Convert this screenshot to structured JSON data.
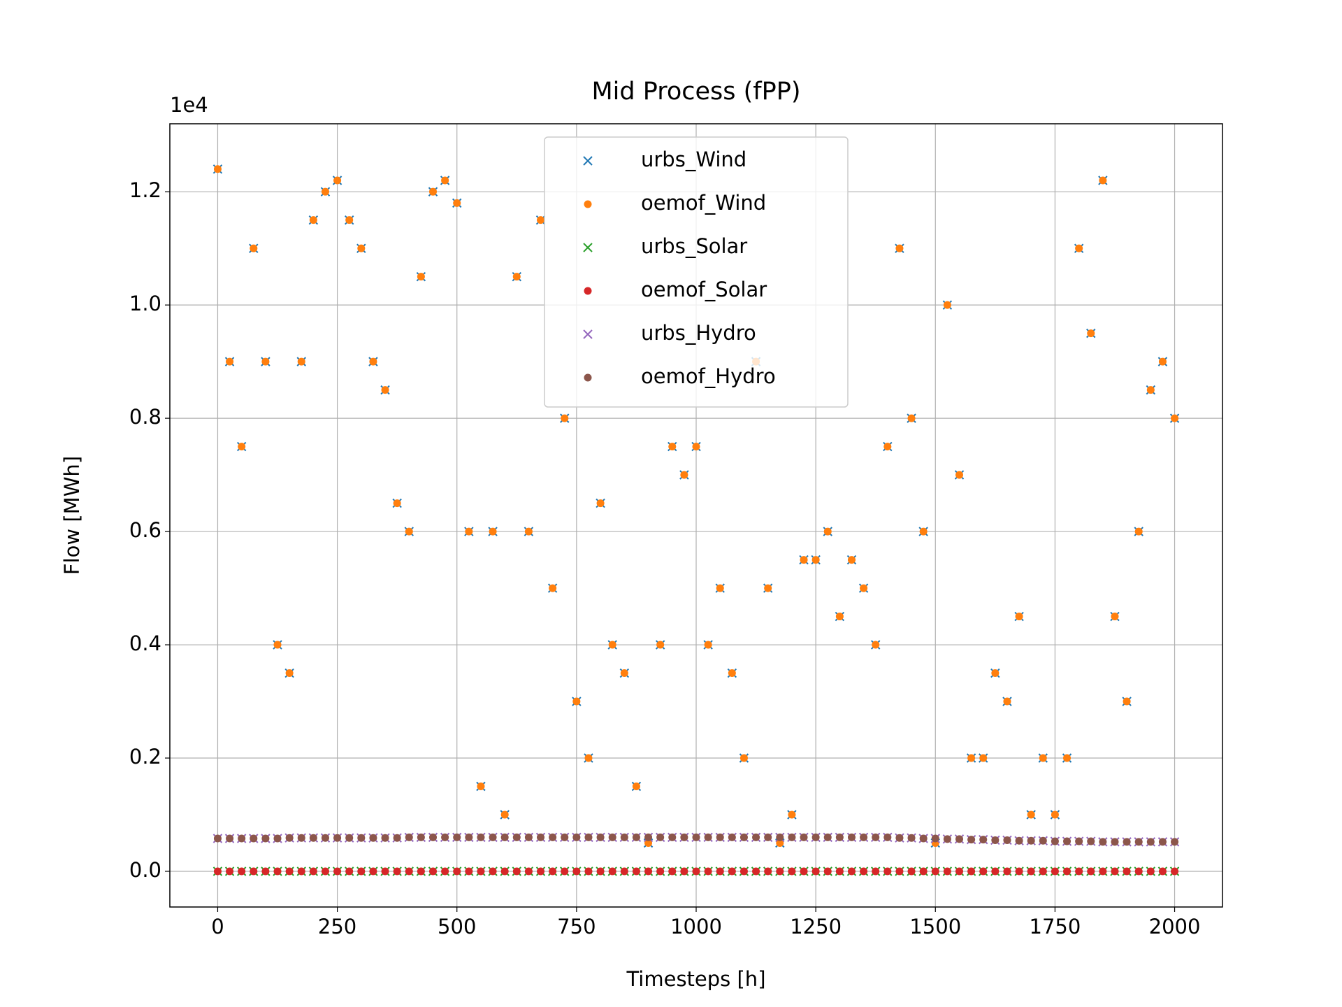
{
  "chart_data": {
    "type": "scatter",
    "title": "Mid Process (fPP)",
    "xlabel": "Timesteps [h]",
    "ylabel": "Flow [MWh]",
    "y_offset_text": "1e4",
    "x": [
      0,
      25,
      50,
      75,
      100,
      125,
      150,
      175,
      200,
      225,
      250,
      275,
      300,
      325,
      350,
      375,
      400,
      425,
      450,
      475,
      500,
      525,
      550,
      575,
      600,
      625,
      650,
      675,
      700,
      725,
      750,
      775,
      800,
      825,
      850,
      875,
      900,
      925,
      950,
      975,
      1000,
      1025,
      1050,
      1075,
      1100,
      1125,
      1150,
      1175,
      1200,
      1225,
      1250,
      1275,
      1300,
      1325,
      1350,
      1375,
      1400,
      1425,
      1450,
      1475,
      1500,
      1525,
      1550,
      1575,
      1600,
      1625,
      1650,
      1675,
      1700,
      1725,
      1750,
      1775,
      1800,
      1825,
      1850,
      1875,
      1900,
      1925,
      1950,
      1975,
      2000
    ],
    "series": [
      {
        "name": "urbs_Wind",
        "color": "#1f77b4",
        "marker": "x",
        "values": [
          1.24,
          0.9,
          0.75,
          1.1,
          0.9,
          0.4,
          0.35,
          0.9,
          1.15,
          1.2,
          1.22,
          1.15,
          1.1,
          0.9,
          0.85,
          0.65,
          0.6,
          1.05,
          1.2,
          1.22,
          1.18,
          0.6,
          0.15,
          0.6,
          0.1,
          1.05,
          0.6,
          1.15,
          0.5,
          0.8,
          0.3,
          0.2,
          0.65,
          0.4,
          0.35,
          0.15,
          0.05,
          0.4,
          0.75,
          0.7,
          0.75,
          0.4,
          0.5,
          0.35,
          0.2,
          0.9,
          0.5,
          0.05,
          0.1,
          0.55,
          0.55,
          0.6,
          0.45,
          0.55,
          0.5,
          0.4,
          0.75,
          1.1,
          0.8,
          0.6,
          0.05,
          1.0,
          0.7,
          0.2,
          0.2,
          0.35,
          0.3,
          0.45,
          0.1,
          0.2,
          0.1,
          0.2,
          1.1,
          0.95,
          1.22,
          0.45,
          0.3,
          0.6,
          0.85,
          0.9,
          0.8
        ]
      },
      {
        "name": "oemof_Wind",
        "color": "#ff7f0e",
        "marker": "o",
        "values": [
          1.24,
          0.9,
          0.75,
          1.1,
          0.9,
          0.4,
          0.35,
          0.9,
          1.15,
          1.2,
          1.22,
          1.15,
          1.1,
          0.9,
          0.85,
          0.65,
          0.6,
          1.05,
          1.2,
          1.22,
          1.18,
          0.6,
          0.15,
          0.6,
          0.1,
          1.05,
          0.6,
          1.15,
          0.5,
          0.8,
          0.3,
          0.2,
          0.65,
          0.4,
          0.35,
          0.15,
          0.05,
          0.4,
          0.75,
          0.7,
          0.75,
          0.4,
          0.5,
          0.35,
          0.2,
          0.9,
          0.5,
          0.05,
          0.1,
          0.55,
          0.55,
          0.6,
          0.45,
          0.55,
          0.5,
          0.4,
          0.75,
          1.1,
          0.8,
          0.6,
          0.05,
          1.0,
          0.7,
          0.2,
          0.2,
          0.35,
          0.3,
          0.45,
          0.1,
          0.2,
          0.1,
          0.2,
          1.1,
          0.95,
          1.22,
          0.45,
          0.3,
          0.6,
          0.85,
          0.9,
          0.8
        ]
      },
      {
        "name": "urbs_Solar",
        "color": "#2ca02c",
        "marker": "x",
        "values": [
          0,
          0,
          0,
          0,
          0,
          0,
          0,
          0,
          0,
          0,
          0,
          0,
          0,
          0,
          0,
          0,
          0,
          0,
          0,
          0,
          0,
          0,
          0,
          0,
          0,
          0,
          0,
          0,
          0,
          0,
          0,
          0,
          0,
          0,
          0,
          0,
          0,
          0,
          0,
          0,
          0,
          0,
          0,
          0,
          0,
          0,
          0,
          0,
          0,
          0,
          0,
          0,
          0,
          0,
          0,
          0,
          0,
          0,
          0,
          0,
          0,
          0,
          0,
          0,
          0,
          0,
          0,
          0,
          0,
          0,
          0,
          0,
          0,
          0,
          0,
          0,
          0,
          0,
          0,
          0,
          0
        ]
      },
      {
        "name": "oemof_Solar",
        "color": "#d62728",
        "marker": "o",
        "values": [
          0,
          0,
          0,
          0,
          0,
          0,
          0,
          0,
          0,
          0,
          0,
          0,
          0,
          0,
          0,
          0,
          0,
          0,
          0,
          0,
          0,
          0,
          0,
          0,
          0,
          0,
          0,
          0,
          0,
          0,
          0,
          0,
          0,
          0,
          0,
          0,
          0,
          0,
          0,
          0,
          0,
          0,
          0,
          0,
          0,
          0,
          0,
          0,
          0,
          0,
          0,
          0,
          0,
          0,
          0,
          0,
          0,
          0,
          0,
          0,
          0,
          0,
          0,
          0,
          0,
          0,
          0,
          0,
          0,
          0,
          0,
          0,
          0,
          0,
          0,
          0,
          0,
          0,
          0,
          0,
          0
        ]
      },
      {
        "name": "urbs_Hydro",
        "color": "#9467bd",
        "marker": "x",
        "values": [
          0.058,
          0.058,
          0.058,
          0.058,
          0.058,
          0.058,
          0.059,
          0.059,
          0.059,
          0.059,
          0.059,
          0.059,
          0.059,
          0.059,
          0.059,
          0.059,
          0.06,
          0.06,
          0.06,
          0.06,
          0.06,
          0.06,
          0.06,
          0.06,
          0.06,
          0.06,
          0.06,
          0.06,
          0.06,
          0.06,
          0.06,
          0.06,
          0.06,
          0.06,
          0.06,
          0.06,
          0.06,
          0.06,
          0.06,
          0.06,
          0.06,
          0.06,
          0.06,
          0.06,
          0.06,
          0.06,
          0.06,
          0.06,
          0.06,
          0.06,
          0.06,
          0.06,
          0.06,
          0.06,
          0.06,
          0.06,
          0.06,
          0.059,
          0.059,
          0.058,
          0.058,
          0.057,
          0.057,
          0.056,
          0.056,
          0.055,
          0.055,
          0.054,
          0.054,
          0.054,
          0.053,
          0.053,
          0.053,
          0.053,
          0.052,
          0.052,
          0.052,
          0.052,
          0.052,
          0.052,
          0.052
        ]
      },
      {
        "name": "oemof_Hydro",
        "color": "#8c564b",
        "marker": "o",
        "values": [
          0.058,
          0.058,
          0.058,
          0.058,
          0.058,
          0.058,
          0.059,
          0.059,
          0.059,
          0.059,
          0.059,
          0.059,
          0.059,
          0.059,
          0.059,
          0.059,
          0.06,
          0.06,
          0.06,
          0.06,
          0.06,
          0.06,
          0.06,
          0.06,
          0.06,
          0.06,
          0.06,
          0.06,
          0.06,
          0.06,
          0.06,
          0.06,
          0.06,
          0.06,
          0.06,
          0.06,
          0.06,
          0.06,
          0.06,
          0.06,
          0.06,
          0.06,
          0.06,
          0.06,
          0.06,
          0.06,
          0.06,
          0.06,
          0.06,
          0.06,
          0.06,
          0.06,
          0.06,
          0.06,
          0.06,
          0.06,
          0.06,
          0.059,
          0.059,
          0.058,
          0.058,
          0.057,
          0.057,
          0.056,
          0.056,
          0.055,
          0.055,
          0.054,
          0.054,
          0.054,
          0.053,
          0.053,
          0.053,
          0.053,
          0.052,
          0.052,
          0.052,
          0.052,
          0.052,
          0.052,
          0.052
        ]
      }
    ],
    "xlim": [
      -100,
      2100
    ],
    "ylim": [
      -0.063,
      1.32
    ],
    "xticks": [
      0,
      250,
      500,
      750,
      1000,
      1250,
      1500,
      1750,
      2000
    ],
    "yticks": [
      {
        "value": 0,
        "label": "0.0"
      },
      0.2,
      0.4,
      0.6,
      0.8,
      {
        "value": 1,
        "label": "1.0"
      },
      1.2
    ],
    "grid": true,
    "legend": "upper center"
  }
}
